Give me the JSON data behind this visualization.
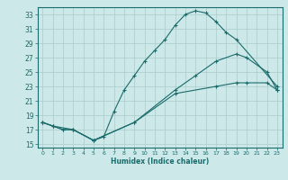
{
  "xlabel": "Humidex (Indice chaleur)",
  "bg_color": "#cce8e8",
  "grid_color": "#aacccc",
  "line_color": "#1a6b6b",
  "xlim": [
    -0.5,
    23.5
  ],
  "ylim": [
    14.5,
    34.0
  ],
  "xticks": [
    0,
    1,
    2,
    3,
    4,
    5,
    6,
    7,
    8,
    9,
    10,
    11,
    12,
    13,
    14,
    15,
    16,
    17,
    18,
    19,
    20,
    21,
    22,
    23
  ],
  "yticks": [
    15,
    17,
    19,
    21,
    23,
    25,
    27,
    29,
    31,
    33
  ],
  "line1_x": [
    0,
    1,
    2,
    3,
    5,
    6,
    7,
    8,
    9,
    10,
    11,
    12,
    13,
    14,
    15,
    16,
    17,
    18,
    19,
    23
  ],
  "line1_y": [
    18,
    17.5,
    17.0,
    17.0,
    15.5,
    16.0,
    19.5,
    22.5,
    24.5,
    26.5,
    28.0,
    29.5,
    31.5,
    33.0,
    33.5,
    33.2,
    32.0,
    30.5,
    29.5,
    23.0
  ],
  "line2_x": [
    0,
    1,
    2,
    3,
    5,
    9,
    13,
    15,
    17,
    19,
    20,
    22,
    23
  ],
  "line2_y": [
    18.0,
    17.5,
    17.0,
    17.0,
    15.5,
    18.0,
    22.5,
    24.5,
    26.5,
    27.5,
    27.0,
    25.0,
    22.5
  ],
  "line3_x": [
    0,
    1,
    3,
    5,
    9,
    13,
    17,
    19,
    20,
    22,
    23
  ],
  "line3_y": [
    18.0,
    17.5,
    17.0,
    15.5,
    18.0,
    22.0,
    23.0,
    23.5,
    23.5,
    23.5,
    22.5
  ]
}
